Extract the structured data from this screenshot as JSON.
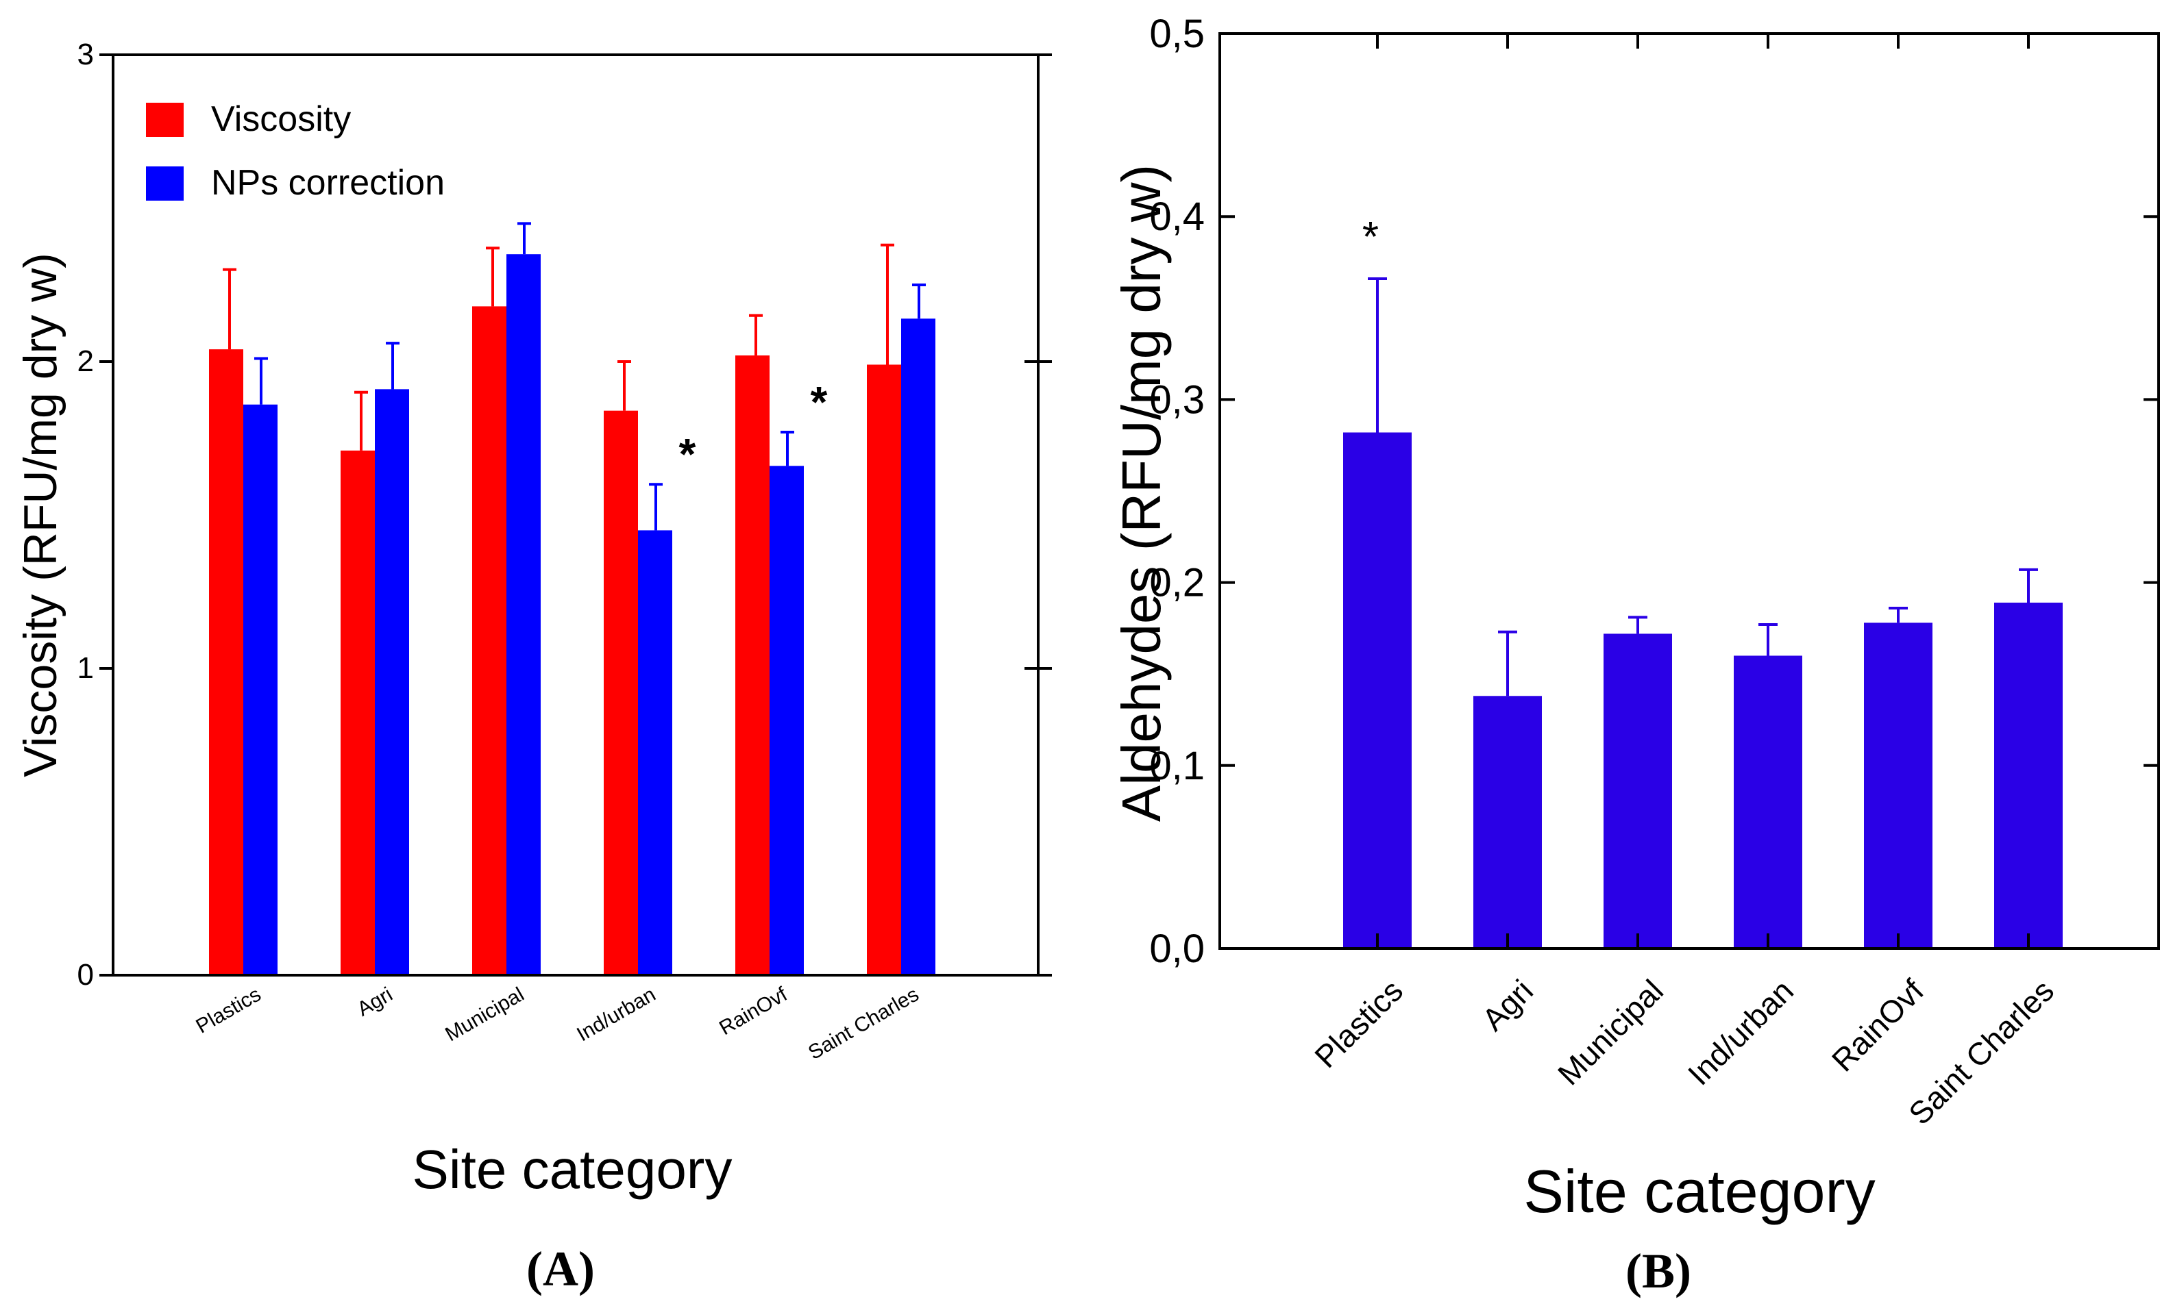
{
  "chart_data": [
    {
      "type": "bar",
      "panel_label": "(A)",
      "ylabel": "Viscosity (RFU/mg dry w)",
      "xlabel": "Site category",
      "ylim": [
        0,
        3
      ],
      "yticks": [
        "0",
        "1",
        "2",
        "3"
      ],
      "ytick_values": [
        0,
        1,
        2,
        3
      ],
      "categories": [
        "Plastics",
        "Agri",
        "Municipal",
        "Ind/urban",
        "RainOvf",
        "Saint Charles"
      ],
      "legend_position": "top-left",
      "series": [
        {
          "name": "Viscosity",
          "color": "#ff0000",
          "values": [
            2.04,
            1.71,
            2.18,
            1.84,
            2.02,
            1.99
          ],
          "errors": [
            0.26,
            0.19,
            0.19,
            0.16,
            0.13,
            0.39
          ]
        },
        {
          "name": "NPs correction",
          "color": "#0000ff",
          "values": [
            1.86,
            1.91,
            2.35,
            1.45,
            1.66,
            2.14
          ],
          "errors": [
            0.15,
            0.15,
            0.1,
            0.15,
            0.11,
            0.11
          ]
        }
      ],
      "significance": [
        {
          "category": "Ind/urban",
          "series": "NPs correction",
          "mark": "*"
        },
        {
          "category": "RainOvf",
          "series": "NPs correction",
          "mark": "*"
        }
      ]
    },
    {
      "type": "bar",
      "panel_label": "(B)",
      "ylabel": "Aldehydes (RFU/mg dry w)",
      "xlabel": "Site category",
      "ylim": [
        0,
        0.5
      ],
      "yticks": [
        "0,0",
        "0,1",
        "0,2",
        "0,3",
        "0,4",
        "0,5"
      ],
      "ytick_values": [
        0,
        0.1,
        0.2,
        0.3,
        0.4,
        0.5
      ],
      "categories": [
        "Plastics",
        "Agri",
        "Municipal",
        "Ind/urban",
        "RainOvf",
        "Saint Charles"
      ],
      "series": [
        {
          "color": "#2a00e6",
          "values": [
            0.282,
            0.138,
            0.172,
            0.16,
            0.178,
            0.189
          ],
          "errors": [
            0.084,
            0.035,
            0.009,
            0.017,
            0.008,
            0.018
          ]
        }
      ],
      "significance": [
        {
          "category": "Plastics",
          "mark": "*"
        }
      ]
    }
  ]
}
